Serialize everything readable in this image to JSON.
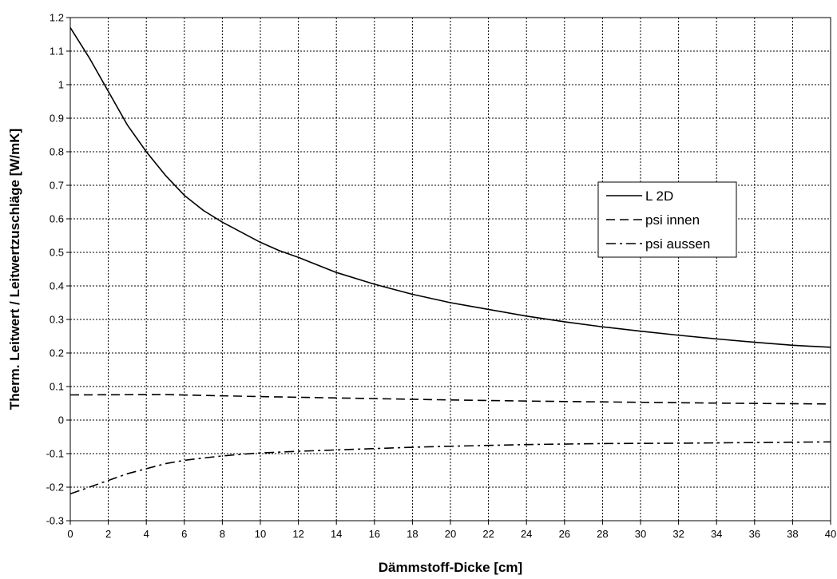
{
  "chart_data": {
    "type": "line",
    "xlabel": "Dämmstoff-Dicke [cm]",
    "ylabel": "Therm. Leitwert / Leitwertzuschläge [W/mK]",
    "xlim": [
      0,
      40
    ],
    "ylim": [
      -0.3,
      1.2
    ],
    "x_ticks": [
      "0",
      "2",
      "4",
      "6",
      "8",
      "10",
      "12",
      "14",
      "16",
      "18",
      "20",
      "22",
      "24",
      "26",
      "28",
      "30",
      "32",
      "34",
      "36",
      "38",
      "40"
    ],
    "y_ticks": [
      "-0.3",
      "-0.2",
      "-0.1",
      "0",
      "0.1",
      "0.2",
      "0.3",
      "0.4",
      "0.5",
      "0.6",
      "0.7",
      "0.8",
      "0.9",
      "1",
      "1.1",
      "1.2"
    ],
    "grid": true,
    "legend_position": "right-center",
    "series": [
      {
        "name": "L 2D",
        "dash": "solid",
        "color": "#000000",
        "x": [
          0,
          1,
          2,
          3,
          4,
          5,
          6,
          7,
          8,
          9,
          10,
          11,
          12,
          14,
          16,
          18,
          20,
          22,
          24,
          26,
          28,
          30,
          32,
          34,
          36,
          38,
          40
        ],
        "y": [
          1.17,
          1.08,
          0.98,
          0.88,
          0.8,
          0.73,
          0.67,
          0.625,
          0.59,
          0.56,
          0.53,
          0.505,
          0.485,
          0.44,
          0.405,
          0.375,
          0.35,
          0.33,
          0.31,
          0.293,
          0.278,
          0.265,
          0.253,
          0.242,
          0.232,
          0.223,
          0.217
        ]
      },
      {
        "name": "psi innen",
        "dash": "dashed",
        "color": "#000000",
        "x": [
          0,
          5,
          10,
          15,
          20,
          25,
          30,
          35,
          40
        ],
        "y": [
          0.075,
          0.076,
          0.07,
          0.065,
          0.06,
          0.056,
          0.053,
          0.05,
          0.048
        ]
      },
      {
        "name": "psi aussen",
        "dash": "dash-dot",
        "color": "#000000",
        "x": [
          0,
          1,
          2,
          3,
          4,
          5,
          6,
          7,
          8,
          9,
          10,
          12,
          14,
          16,
          18,
          20,
          24,
          28,
          32,
          36,
          40
        ],
        "y": [
          -0.22,
          -0.2,
          -0.18,
          -0.16,
          -0.145,
          -0.13,
          -0.12,
          -0.113,
          -0.107,
          -0.102,
          -0.098,
          -0.093,
          -0.089,
          -0.085,
          -0.081,
          -0.078,
          -0.073,
          -0.07,
          -0.069,
          -0.067,
          -0.065
        ]
      }
    ]
  }
}
